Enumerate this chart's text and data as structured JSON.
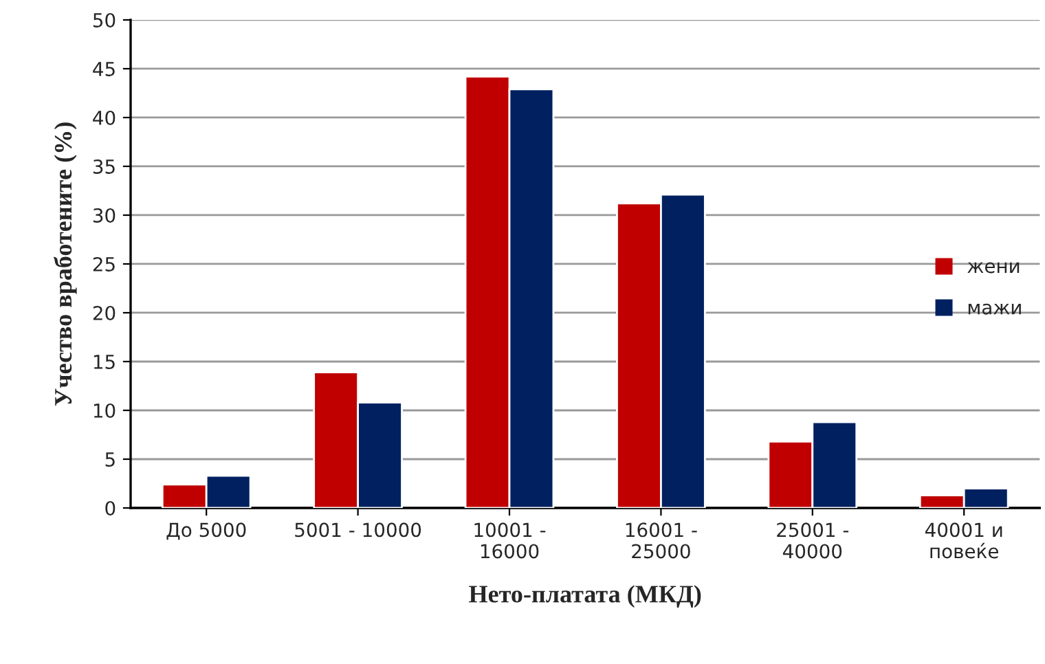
{
  "chart_data": {
    "type": "bar",
    "xlabel": "Нето-платата (МКД)",
    "ylabel": "Учество вработените (%)",
    "categories": [
      "До 5000",
      "5001 - 10000",
      "10001 -\n16000",
      "16001 -\n25000",
      "25001 -\n40000",
      "40001 и\nповеќе"
    ],
    "series": [
      {
        "name": "жени",
        "color": "#c00000",
        "values": [
          2.4,
          13.9,
          44.2,
          31.2,
          6.8,
          1.3
        ]
      },
      {
        "name": "мажи",
        "color": "#002060",
        "values": [
          3.3,
          10.8,
          42.9,
          32.1,
          8.8,
          2.0
        ]
      }
    ],
    "ylim": [
      0,
      50
    ],
    "yticks": [
      0,
      5,
      10,
      15,
      20,
      25,
      30,
      35,
      40,
      45,
      50
    ],
    "grid": "y",
    "legend": "right"
  }
}
